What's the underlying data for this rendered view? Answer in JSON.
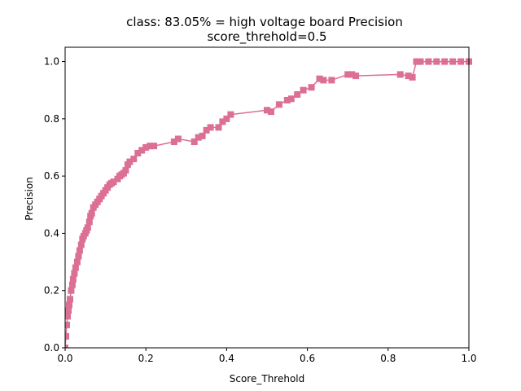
{
  "chart_data": {
    "type": "line",
    "title_line1": "class: 83.05% = high voltage board Precision",
    "title_line2": "score_threhold=0.5",
    "xlabel": "Score_Threhold",
    "ylabel": "Precision",
    "xlim": [
      0.0,
      1.0
    ],
    "ylim": [
      0.0,
      1.05
    ],
    "xticks": [
      "0.0",
      "0.2",
      "0.4",
      "0.6",
      "0.8",
      "1.0"
    ],
    "yticks": [
      "0.0",
      "0.2",
      "0.4",
      "0.6",
      "0.8",
      "1.0"
    ],
    "grid": false,
    "marker": "square",
    "color": "#db7093",
    "x": [
      0.0,
      0.002,
      0.004,
      0.006,
      0.008,
      0.01,
      0.012,
      0.015,
      0.018,
      0.02,
      0.023,
      0.026,
      0.03,
      0.033,
      0.036,
      0.04,
      0.043,
      0.046,
      0.05,
      0.053,
      0.056,
      0.06,
      0.063,
      0.066,
      0.07,
      0.075,
      0.08,
      0.085,
      0.09,
      0.095,
      0.1,
      0.105,
      0.11,
      0.115,
      0.12,
      0.13,
      0.135,
      0.14,
      0.145,
      0.15,
      0.155,
      0.16,
      0.17,
      0.18,
      0.19,
      0.2,
      0.21,
      0.22,
      0.27,
      0.28,
      0.32,
      0.33,
      0.34,
      0.35,
      0.36,
      0.38,
      0.39,
      0.4,
      0.41,
      0.5,
      0.51,
      0.53,
      0.55,
      0.56,
      0.575,
      0.59,
      0.61,
      0.63,
      0.64,
      0.66,
      0.7,
      0.71,
      0.72,
      0.83,
      0.85,
      0.86,
      0.87,
      0.88,
      0.9,
      0.92,
      0.94,
      0.96,
      0.98,
      1.0
    ],
    "y": [
      0.0,
      0.04,
      0.08,
      0.11,
      0.13,
      0.15,
      0.17,
      0.2,
      0.22,
      0.24,
      0.26,
      0.28,
      0.3,
      0.32,
      0.34,
      0.36,
      0.38,
      0.39,
      0.4,
      0.41,
      0.42,
      0.44,
      0.46,
      0.47,
      0.49,
      0.5,
      0.51,
      0.52,
      0.53,
      0.54,
      0.55,
      0.56,
      0.57,
      0.575,
      0.58,
      0.59,
      0.6,
      0.605,
      0.61,
      0.62,
      0.64,
      0.65,
      0.66,
      0.68,
      0.69,
      0.7,
      0.705,
      0.705,
      0.72,
      0.73,
      0.72,
      0.735,
      0.74,
      0.76,
      0.77,
      0.77,
      0.79,
      0.8,
      0.815,
      0.83,
      0.825,
      0.85,
      0.865,
      0.87,
      0.885,
      0.9,
      0.91,
      0.94,
      0.935,
      0.935,
      0.955,
      0.955,
      0.95,
      0.955,
      0.95,
      0.945,
      1.0,
      1.0,
      1.0,
      1.0,
      1.0,
      1.0,
      1.0,
      1.0
    ]
  }
}
